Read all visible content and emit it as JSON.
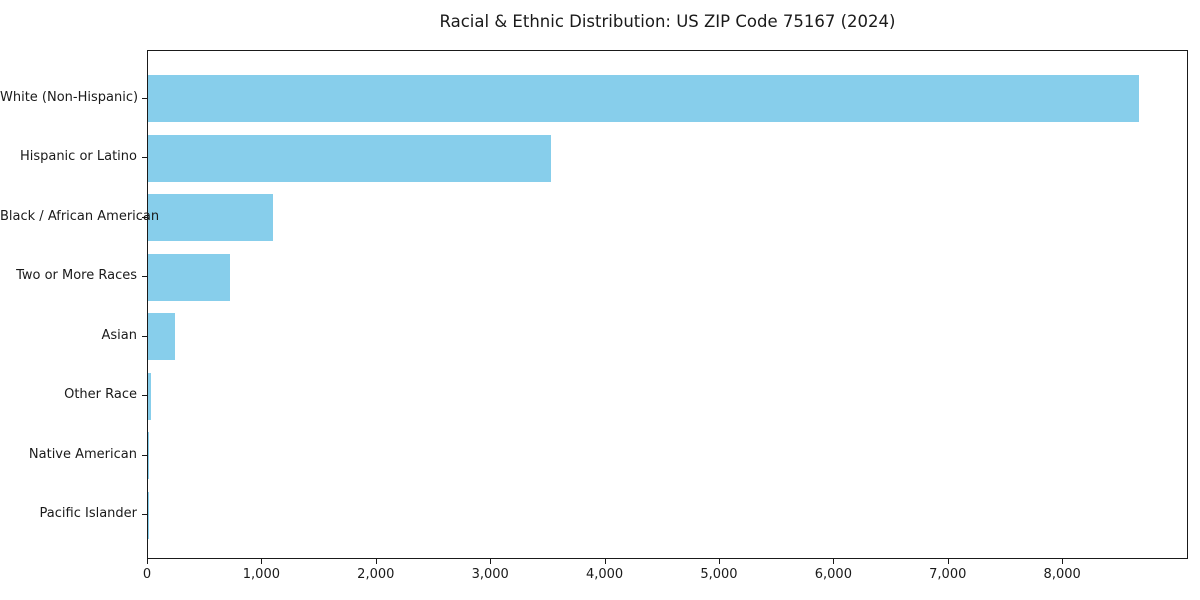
{
  "page": {
    "background_color": "#ffffff",
    "text_color": "#1a1a1a"
  },
  "chart_data": {
    "type": "bar",
    "orientation": "horizontal",
    "title": "Racial & Ethnic Distribution: US ZIP Code 75167 (2024)",
    "xlabel": "",
    "ylabel": "",
    "categories": [
      "White (Non-Hispanic)",
      "Hispanic or Latino",
      "Black / African American",
      "Two or More Races",
      "Asian",
      "Other Race",
      "Native American",
      "Pacific Islander"
    ],
    "values": [
      8660,
      3520,
      1090,
      720,
      240,
      25,
      8,
      2
    ],
    "bar_color": "#87ceeb",
    "xlim": [
      0,
      9100
    ],
    "x_ticks": [
      0,
      1000,
      2000,
      3000,
      4000,
      5000,
      6000,
      7000,
      8000
    ],
    "x_tick_labels": [
      "0",
      "1,000",
      "2,000",
      "3,000",
      "4,000",
      "5,000",
      "6,000",
      "7,000",
      "8,000"
    ],
    "grid": false,
    "legend": "none",
    "frame": true
  }
}
